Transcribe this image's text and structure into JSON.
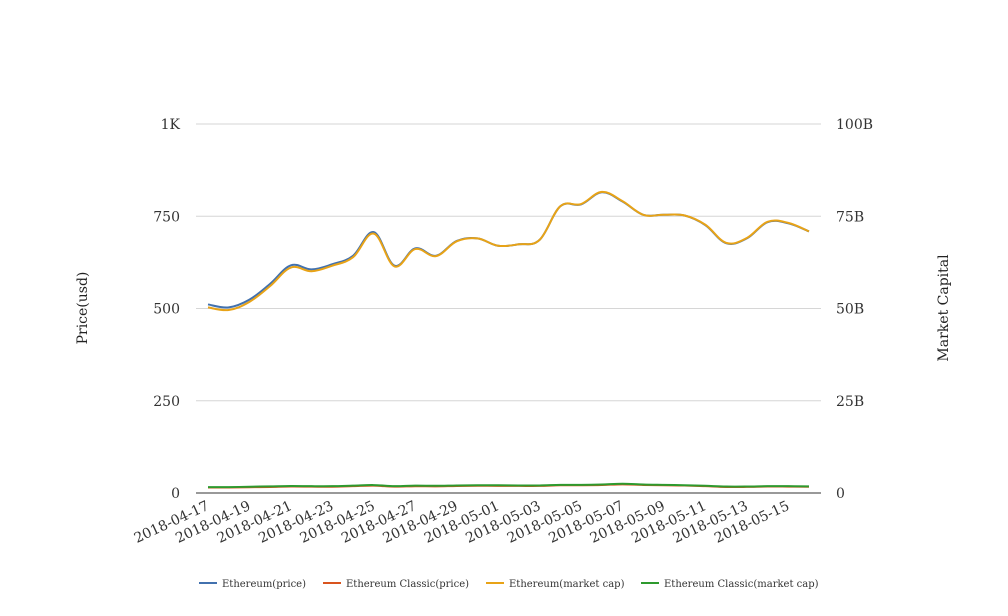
{
  "chart_data": {
    "type": "line",
    "title": "",
    "ylabel": "Price(usd)",
    "y2label": "Market Capital",
    "ylim": [
      0,
      1000
    ],
    "y2lim": [
      0,
      100000000000
    ],
    "yticks": [
      "0",
      "250",
      "500",
      "750",
      "1K"
    ],
    "y2ticks": [
      "0",
      "25B",
      "50B",
      "75B",
      "100B"
    ],
    "xtick_labels": [
      "2018-04-17",
      "2018-04-19",
      "2018-04-21",
      "2018-04-23",
      "2018-04-25",
      "2018-04-27",
      "2018-04-29",
      "2018-05-01",
      "2018-05-03",
      "2018-05-05",
      "2018-05-07",
      "2018-05-09",
      "2018-05-11",
      "2018-05-13",
      "2018-05-15"
    ],
    "x": [
      "2018-04-17",
      "2018-04-18",
      "2018-04-19",
      "2018-04-20",
      "2018-04-21",
      "2018-04-22",
      "2018-04-23",
      "2018-04-24",
      "2018-04-25",
      "2018-04-26",
      "2018-04-27",
      "2018-04-28",
      "2018-04-29",
      "2018-04-30",
      "2018-05-01",
      "2018-05-02",
      "2018-05-03",
      "2018-05-04",
      "2018-05-05",
      "2018-05-06",
      "2018-05-07",
      "2018-05-08",
      "2018-05-09",
      "2018-05-10",
      "2018-05-11",
      "2018-05-12",
      "2018-05-13",
      "2018-05-14",
      "2018-05-15",
      "2018-05-16"
    ],
    "grid": true,
    "legend": "bottom",
    "series": [
      {
        "name": "Ethereum(price)",
        "axis": "left",
        "color": "#4271ae",
        "values": [
          511,
          503,
          524,
          567,
          617,
          606,
          620,
          643,
          707,
          616,
          663,
          643,
          683,
          690,
          670,
          674,
          686,
          777,
          782,
          815,
          790,
          754,
          754,
          752,
          726,
          677,
          690,
          734,
          731,
          709
        ]
      },
      {
        "name": "Ethereum Classic(price)",
        "axis": "left",
        "color": "#d9541e",
        "values": [
          14.9,
          14.8,
          15.6,
          16.4,
          17.6,
          17.2,
          17.0,
          18.5,
          19.9,
          17.3,
          18.4,
          18.1,
          19.1,
          19.6,
          19.3,
          19.2,
          19.2,
          21.0,
          21.1,
          21.7,
          23.5,
          21.8,
          21.0,
          20.4,
          18.5,
          16.3,
          16.5,
          17.6,
          17.4,
          17.0
        ]
      },
      {
        "name": "Ethereum(market cap)",
        "axis": "right",
        "color": "#e8a317",
        "values": [
          50300000000,
          49600000000,
          51800000000,
          56100000000,
          61100000000,
          60100000000,
          61600000000,
          63900000000,
          70300000000,
          61400000000,
          66100000000,
          64200000000,
          68200000000,
          69000000000,
          67000000000,
          67400000000,
          68600000000,
          77700000000,
          78300000000,
          81600000000,
          79100000000,
          75400000000,
          75400000000,
          75200000000,
          72700000000,
          67800000000,
          69100000000,
          73500000000,
          73200000000,
          70900000000
        ]
      },
      {
        "name": "Ethereum Classic(market cap)",
        "axis": "right",
        "color": "#2e9a2e",
        "values": [
          1600000000,
          1600000000,
          1700000000,
          1800000000,
          1900000000,
          1850000000,
          1850000000,
          2000000000,
          2150000000,
          1850000000,
          2000000000,
          1950000000,
          2050000000,
          2100000000,
          2100000000,
          2050000000,
          2050000000,
          2200000000,
          2200000000,
          2300000000,
          2500000000,
          2300000000,
          2200000000,
          2100000000,
          1950000000,
          1750000000,
          1750000000,
          1850000000,
          1850000000,
          1800000000
        ]
      }
    ]
  }
}
